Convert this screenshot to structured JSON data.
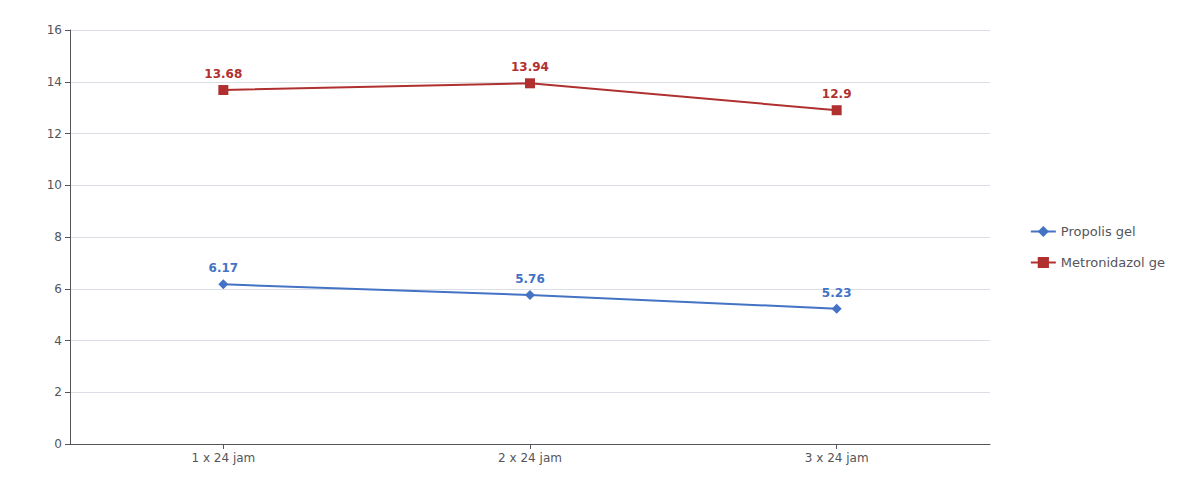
{
  "chart_data": {
    "type": "line",
    "categories": [
      "1 x 24 jam",
      "2 x 24 jam",
      "3 x 24 jam"
    ],
    "series": [
      {
        "name": "Propolis gel",
        "color": "#4472C4",
        "marker": "diamond",
        "values": [
          6.17,
          5.76,
          5.23
        ]
      },
      {
        "name": "Metronidazol ge",
        "color": "#B03030",
        "marker": "square",
        "values": [
          13.68,
          13.94,
          12.9
        ]
      }
    ],
    "ylim": [
      0,
      16
    ],
    "yticks": [
      0,
      2,
      4,
      6,
      8,
      10,
      12,
      14,
      16
    ],
    "grid": true,
    "legend": "right",
    "data_labels": true
  }
}
